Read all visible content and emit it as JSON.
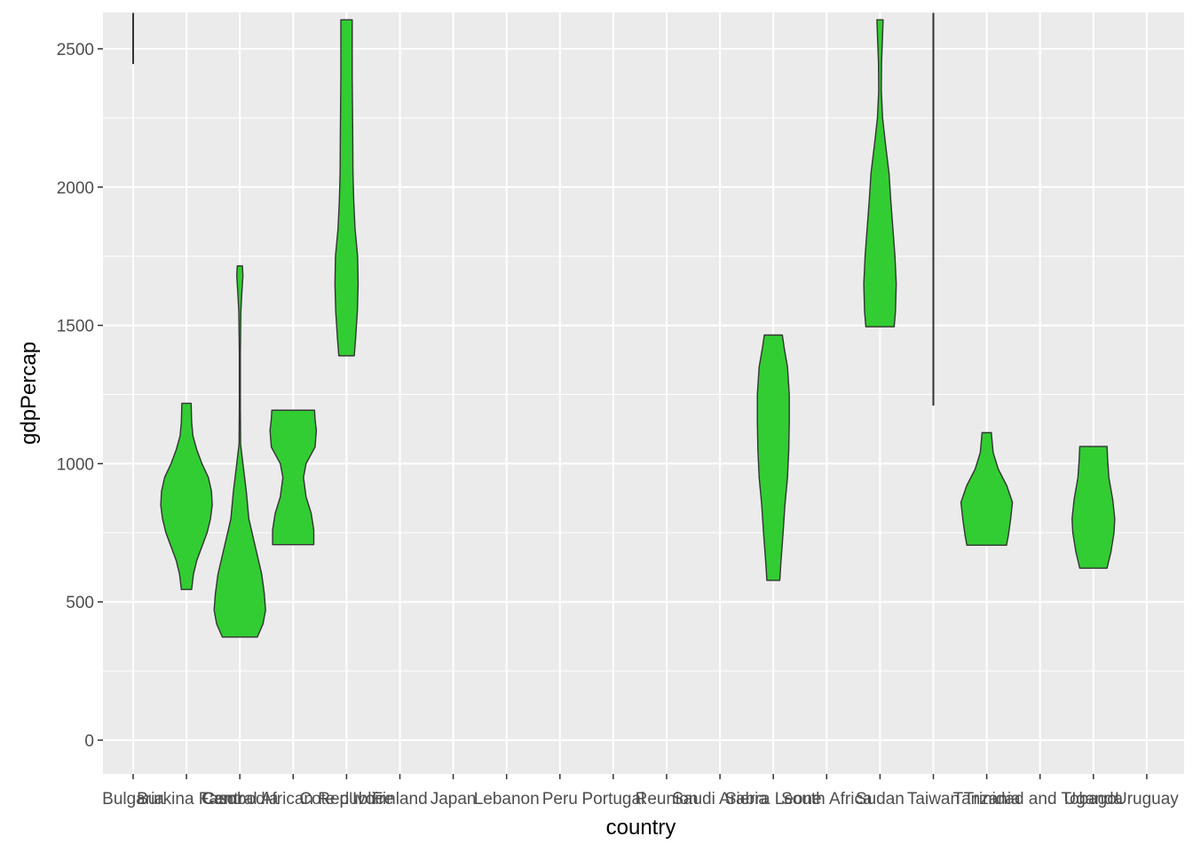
{
  "chart_data": {
    "type": "violin",
    "xlabel": "country",
    "ylabel": "gdpPercap",
    "ylim": [
      -120,
      2630
    ],
    "yticks": [
      0,
      500,
      1000,
      1500,
      2000,
      2500
    ],
    "categories": [
      "Bulgaria",
      "Burkina Faso",
      "Cambodia",
      "Central African Republic",
      "Cote d'Ivoire",
      "Finland",
      "Japan",
      "Lebanon",
      "Peru",
      "Portugal",
      "Reunion",
      "Saudi Arabia",
      "Sierra Leone",
      "South Africa",
      "Sudan",
      "Taiwan",
      "Tanzania",
      "Trinidad and Tobago",
      "Uganda",
      "Uruguay"
    ],
    "fill_color": "#32cd32",
    "outline_color": "#333333",
    "panel_color": "#ebebeb",
    "violins": [
      {
        "country": "Bulgaria",
        "min": 2445,
        "max": 2630,
        "width": [
          [
            2445,
            0
          ],
          [
            2630,
            0
          ]
        ]
      },
      {
        "country": "Burkina Faso",
        "min": 545,
        "max": 1218,
        "width": [
          [
            545,
            0.2
          ],
          [
            600,
            0.27
          ],
          [
            650,
            0.4
          ],
          [
            700,
            0.6
          ],
          [
            750,
            0.8
          ],
          [
            800,
            0.93
          ],
          [
            850,
            1.0
          ],
          [
            900,
            0.97
          ],
          [
            950,
            0.85
          ],
          [
            1000,
            0.6
          ],
          [
            1050,
            0.4
          ],
          [
            1100,
            0.25
          ],
          [
            1150,
            0.2
          ],
          [
            1218,
            0.18
          ]
        ]
      },
      {
        "country": "Cambodia",
        "min": 373,
        "max": 1715,
        "width": [
          [
            373,
            0.68
          ],
          [
            420,
            0.9
          ],
          [
            470,
            1.0
          ],
          [
            530,
            0.95
          ],
          [
            600,
            0.85
          ],
          [
            700,
            0.6
          ],
          [
            800,
            0.35
          ],
          [
            900,
            0.25
          ],
          [
            1000,
            0.12
          ],
          [
            1070,
            0.03
          ],
          [
            1200,
            0.02
          ],
          [
            1400,
            0.02
          ],
          [
            1550,
            0.04
          ],
          [
            1620,
            0.08
          ],
          [
            1680,
            0.12
          ],
          [
            1715,
            0.1
          ]
        ]
      },
      {
        "country": "Central African Republic",
        "min": 707,
        "max": 1193,
        "width": [
          [
            707,
            0.8
          ],
          [
            760,
            0.8
          ],
          [
            820,
            0.7
          ],
          [
            880,
            0.5
          ],
          [
            950,
            0.4
          ],
          [
            1000,
            0.5
          ],
          [
            1060,
            0.85
          ],
          [
            1120,
            0.9
          ],
          [
            1160,
            0.85
          ],
          [
            1193,
            0.83
          ]
        ]
      },
      {
        "country": "Cote d'Ivoire",
        "min": 1390,
        "max": 2605,
        "width": [
          [
            1390,
            0.3
          ],
          [
            1450,
            0.35
          ],
          [
            1550,
            0.42
          ],
          [
            1650,
            0.45
          ],
          [
            1750,
            0.43
          ],
          [
            1850,
            0.33
          ],
          [
            1950,
            0.28
          ],
          [
            2050,
            0.25
          ],
          [
            2200,
            0.24
          ],
          [
            2400,
            0.22
          ],
          [
            2550,
            0.22
          ],
          [
            2605,
            0.22
          ]
        ]
      },
      {
        "country": "Sierra Leone",
        "min": 578,
        "max": 1465,
        "width": [
          [
            578,
            0.25
          ],
          [
            650,
            0.3
          ],
          [
            750,
            0.38
          ],
          [
            850,
            0.45
          ],
          [
            950,
            0.55
          ],
          [
            1050,
            0.6
          ],
          [
            1150,
            0.62
          ],
          [
            1250,
            0.62
          ],
          [
            1350,
            0.55
          ],
          [
            1420,
            0.42
          ],
          [
            1465,
            0.35
          ]
        ]
      },
      {
        "country": "Sudan",
        "min": 1495,
        "max": 2605,
        "width": [
          [
            1495,
            0.55
          ],
          [
            1550,
            0.6
          ],
          [
            1650,
            0.63
          ],
          [
            1750,
            0.58
          ],
          [
            1850,
            0.5
          ],
          [
            1950,
            0.42
          ],
          [
            2050,
            0.35
          ],
          [
            2150,
            0.22
          ],
          [
            2250,
            0.1
          ],
          [
            2350,
            0.05
          ],
          [
            2450,
            0.06
          ],
          [
            2550,
            0.1
          ],
          [
            2605,
            0.12
          ]
        ]
      },
      {
        "country": "Taiwan",
        "min": 1210,
        "max": 2630,
        "width": [
          [
            1210,
            0
          ],
          [
            2630,
            0
          ]
        ]
      },
      {
        "country": "Tanzania",
        "min": 705,
        "max": 1112,
        "width": [
          [
            705,
            0.77
          ],
          [
            740,
            0.84
          ],
          [
            800,
            0.93
          ],
          [
            860,
            1.0
          ],
          [
            920,
            0.78
          ],
          [
            980,
            0.45
          ],
          [
            1040,
            0.25
          ],
          [
            1090,
            0.2
          ],
          [
            1112,
            0.18
          ]
        ]
      },
      {
        "country": "Uganda",
        "min": 622,
        "max": 1062,
        "width": [
          [
            622,
            0.53
          ],
          [
            680,
            0.68
          ],
          [
            750,
            0.8
          ],
          [
            800,
            0.83
          ],
          [
            870,
            0.75
          ],
          [
            950,
            0.6
          ],
          [
            1020,
            0.55
          ],
          [
            1062,
            0.53
          ]
        ]
      }
    ]
  }
}
